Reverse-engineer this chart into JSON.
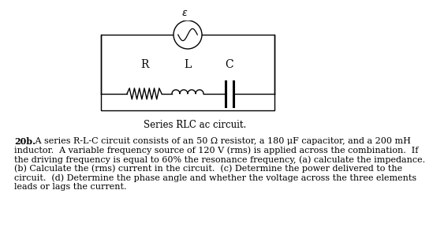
{
  "background_color": "#ffffff",
  "caption": "Series RLC ac circuit.",
  "caption_fontsize": 8.5,
  "problem_text_bold": "20b.",
  "problem_line1": " A series R-L-C circuit consists of an 50 Ω resistor, a 180 μF capacitor, and a 200 mH",
  "problem_line2": "inductor.  A variable frequency source of 120 V (rms) is applied across the combination.  If",
  "problem_line3": "the driving frequency is equal to 60% the resonance frequency, (a) calculate the impedance.",
  "problem_line4": "(b) Calculate the (rms) current in the circuit.  (c) Determine the power delivered to the",
  "problem_line5": "circuit.  (d) Determine the phase angle and whether the voltage across the three elements",
  "problem_line6": "leads or lags the current.",
  "problem_fontsize": 8.0,
  "fig_width": 4.74,
  "fig_height": 2.76
}
